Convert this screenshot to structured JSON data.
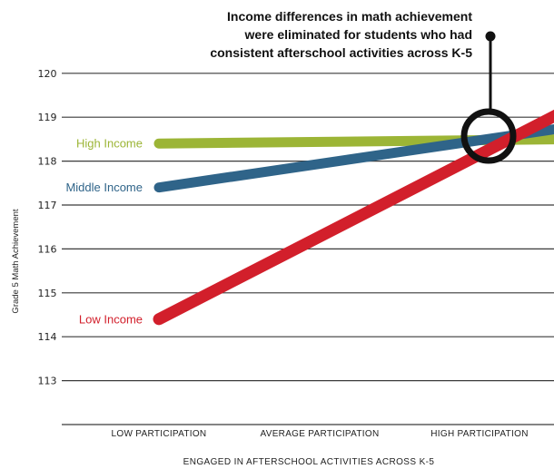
{
  "chart_data": {
    "type": "line",
    "title": "",
    "xlabel": "ENGAGED IN AFTERSCHOOL ACTIVITIES ACROSS K-5",
    "ylabel": "Grade 5 Math Achievement",
    "categories": [
      "LOW PARTICIPATION",
      "AVERAGE PARTICIPATION",
      "HIGH PARTICIPATION"
    ],
    "ylim": [
      112,
      120
    ],
    "yticks": [
      113,
      114,
      115,
      116,
      117,
      118,
      119,
      120
    ],
    "grid": true,
    "series": [
      {
        "name": "High Income",
        "color": "#9cb536",
        "x": [
          0,
          2.6
        ],
        "values": [
          118.4,
          118.5
        ]
      },
      {
        "name": "Middle Income",
        "color": "#2f6489",
        "x": [
          0,
          2.6
        ],
        "values": [
          117.4,
          118.8
        ]
      },
      {
        "name": "Low Income",
        "color": "#d21f2b",
        "x": [
          0,
          2.5
        ],
        "values": [
          114.4,
          119.1
        ]
      }
    ],
    "annotation": {
      "lines": [
        "Income differences in math achievement",
        "were eliminated for students who had",
        "consistent afterschool activities across K-5"
      ]
    }
  }
}
